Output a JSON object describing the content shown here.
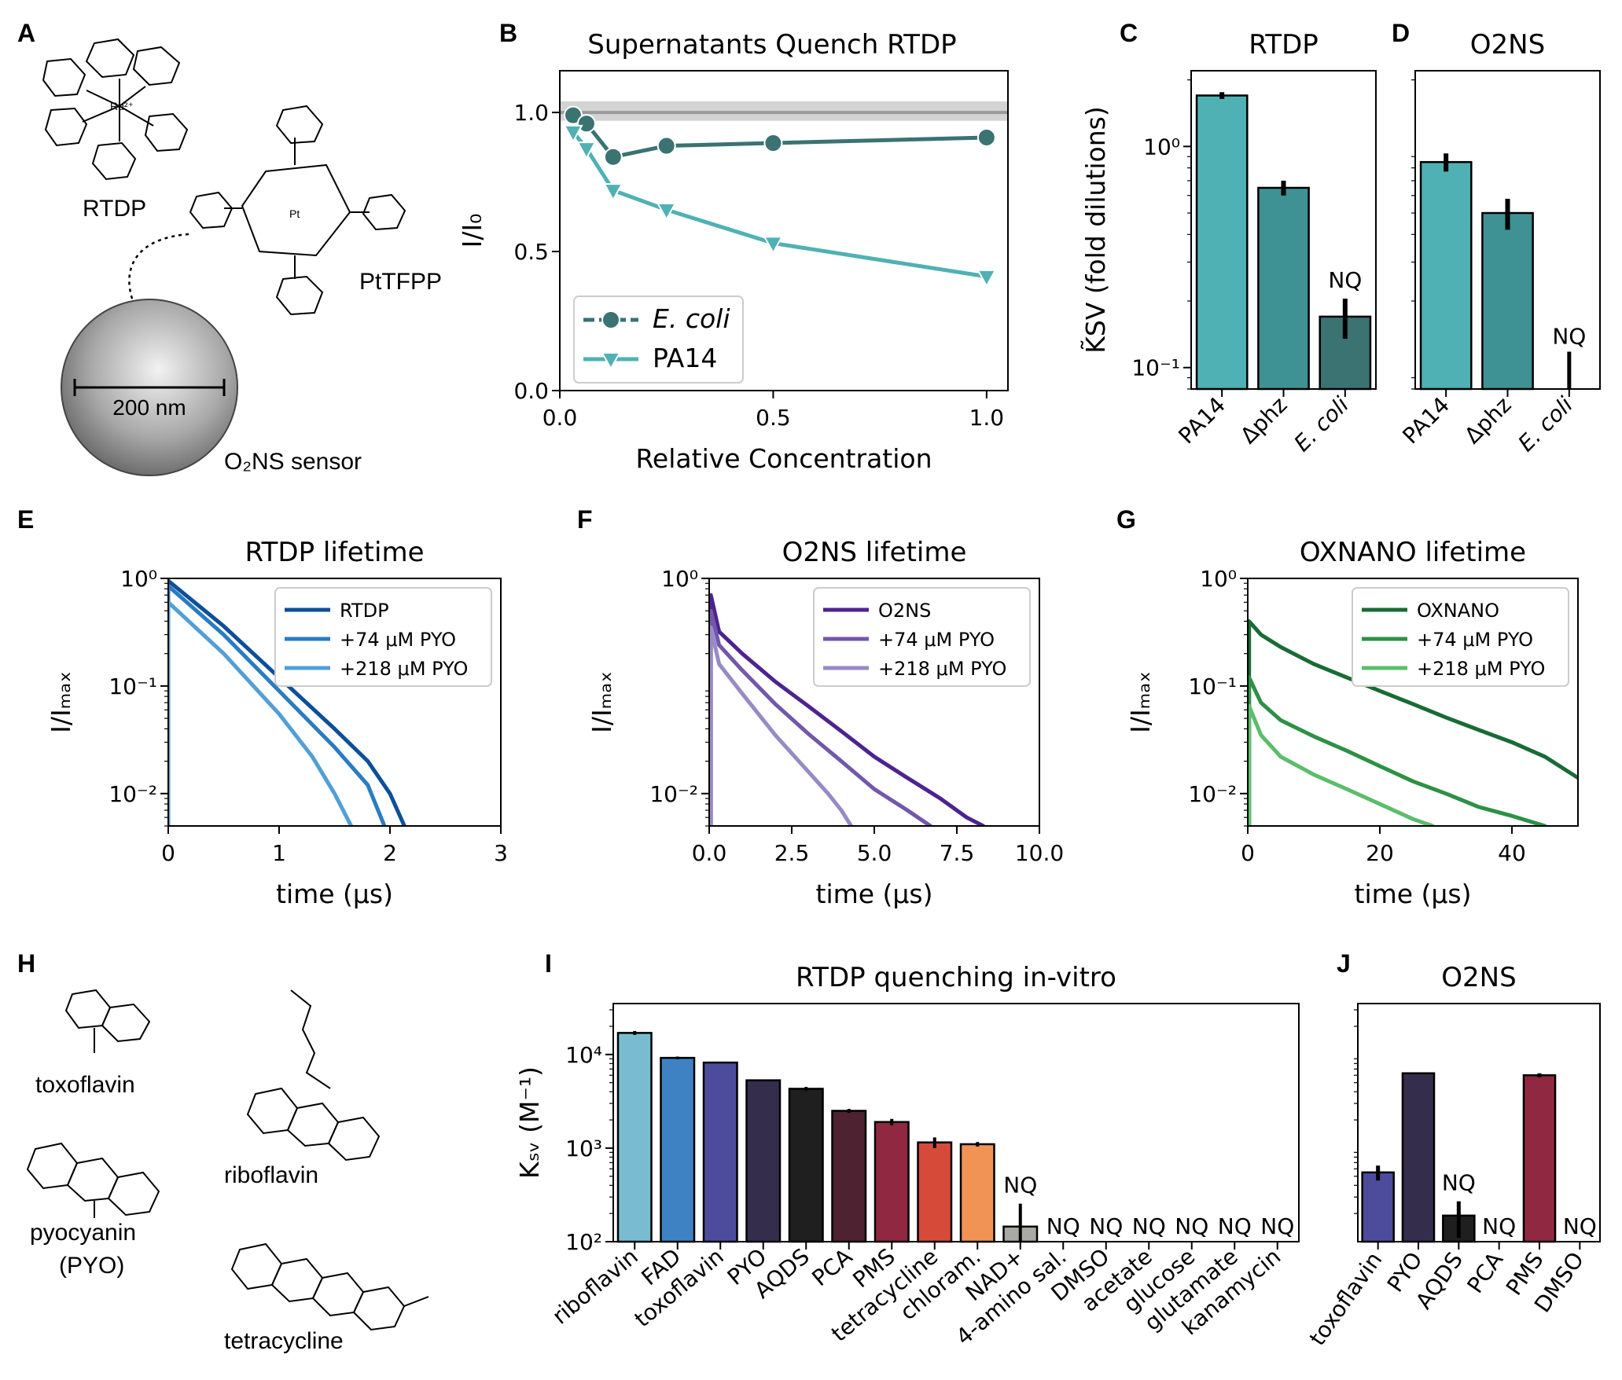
{
  "panels": {
    "A": {
      "letter": "A",
      "labels": [
        "RTDP",
        "PtTFPP",
        "200 nm",
        "O₂NS sensor"
      ]
    },
    "B": {
      "letter": "B"
    },
    "C": {
      "letter": "C"
    },
    "D": {
      "letter": "D"
    },
    "E": {
      "letter": "E"
    },
    "F": {
      "letter": "F"
    },
    "G": {
      "letter": "G"
    },
    "H": {
      "letter": "H",
      "labels": [
        "toxoflavin",
        "riboflavin",
        "pyocyanin",
        "(PYO)",
        "tetracycline"
      ]
    },
    "I": {
      "letter": "I"
    },
    "J": {
      "letter": "J"
    }
  },
  "colors": {
    "ecoli": "#3a7371",
    "pa14": "#4fb1b3",
    "dphz": "#3e9294",
    "rtdp_lines": [
      "#0d4f99",
      "#2a7cc2",
      "#519fd6"
    ],
    "o2ns_lines": [
      "#4d2390",
      "#7257ab",
      "#988ac6"
    ],
    "oxnano_lines": [
      "#196b35",
      "#2d9145",
      "#5bbd6b"
    ]
  },
  "chart_data": [
    {
      "id": "B",
      "type": "line",
      "title": "Supernatants Quench RTDP",
      "xlabel": "Relative Concentration",
      "ylabel": "I/I₀",
      "xlim": [
        0,
        1.05
      ],
      "ylim": [
        0,
        1.15
      ],
      "xticks": [
        0.0,
        0.5,
        1.0
      ],
      "xtick_labels": [
        "0.0",
        "0.5",
        "1.0"
      ],
      "yticks": [
        0.0,
        0.5,
        1.0
      ],
      "ytick_labels": [
        "0.0",
        "0.5",
        "1.0"
      ],
      "reference_band": [
        0.97,
        1.04
      ],
      "reference_line": 1.0,
      "legend": "lower-left",
      "series": [
        {
          "name": "E. coli",
          "marker": "circle",
          "x": [
            0.03125,
            0.0625,
            0.125,
            0.25,
            0.5,
            1.0
          ],
          "y": [
            0.99,
            0.96,
            0.84,
            0.88,
            0.89,
            0.91
          ]
        },
        {
          "name": "PA14",
          "marker": "triangle-down",
          "x": [
            0.03125,
            0.0625,
            0.125,
            0.25,
            0.5,
            1.0
          ],
          "y": [
            0.93,
            0.87,
            0.72,
            0.65,
            0.53,
            0.41
          ]
        }
      ]
    },
    {
      "id": "C",
      "type": "bar",
      "title": "RTDP",
      "scale": "log",
      "ylabel": "K̃SV (fold dilutions)",
      "ylim": [
        0.08,
        2.2
      ],
      "yticks": [
        0.1,
        1.0
      ],
      "ytick_labels": [
        "10⁻¹",
        "10⁰"
      ],
      "categories": [
        "PA14",
        "Δphz",
        "E. coli"
      ],
      "values": [
        1.7,
        0.65,
        0.17
      ],
      "errors": [
        0.06,
        0.05,
        0.035
      ],
      "annotations": [
        {
          "category": "E. coli",
          "text": "NQ"
        }
      ]
    },
    {
      "id": "D",
      "type": "bar",
      "title": "O2NS",
      "scale": "log",
      "ylim": [
        0.08,
        2.2
      ],
      "categories": [
        "PA14",
        "Δphz",
        "E. coli"
      ],
      "values": [
        0.85,
        0.5,
        null
      ],
      "errors": [
        0.08,
        0.08,
        null
      ],
      "annotations": [
        {
          "category": "E. coli",
          "text": "NQ"
        }
      ]
    },
    {
      "id": "E",
      "type": "line",
      "title": "RTDP lifetime",
      "scale": "log",
      "xlabel": "time (μs)",
      "ylabel": "I/Iₘₐₓ",
      "xlim": [
        0,
        3
      ],
      "ylim": [
        0.005,
        1.0
      ],
      "xticks": [
        0,
        1,
        2,
        3
      ],
      "xtick_labels": [
        "0",
        "1",
        "2",
        "3"
      ],
      "yticks": [
        0.01,
        0.1,
        1.0
      ],
      "ytick_labels": [
        "10⁻²",
        "10⁻¹",
        "10⁰"
      ],
      "legend": "upper-right",
      "series": [
        {
          "name": "RTDP",
          "x": [
            0,
            0.5,
            1.0,
            1.5,
            1.8,
            2.0,
            2.13
          ],
          "y": [
            0.95,
            0.36,
            0.12,
            0.04,
            0.02,
            0.01,
            0.005
          ]
        },
        {
          "name": "+74 μM PYO",
          "x": [
            0,
            0.5,
            1.0,
            1.5,
            1.8,
            1.95
          ],
          "y": [
            0.85,
            0.3,
            0.09,
            0.027,
            0.012,
            0.005
          ]
        },
        {
          "name": "+218 μM PYO",
          "x": [
            0,
            0.5,
            1.0,
            1.3,
            1.5,
            1.65
          ],
          "y": [
            0.6,
            0.2,
            0.055,
            0.022,
            0.01,
            0.005
          ]
        }
      ]
    },
    {
      "id": "F",
      "type": "line",
      "title": "O2NS lifetime",
      "scale": "log",
      "xlabel": "time (μs)",
      "ylabel": "I/Iₘₐₓ",
      "xlim": [
        0,
        10
      ],
      "ylim": [
        0.005,
        1.0
      ],
      "xticks": [
        0,
        2.5,
        5.0,
        7.5,
        10.0
      ],
      "xtick_labels": [
        "0.0",
        "2.5",
        "5.0",
        "7.5",
        "10.0"
      ],
      "yticks": [
        0.01,
        1.0
      ],
      "ytick_labels": [
        "10⁻²",
        "10⁰"
      ],
      "legend": "upper-right",
      "series": [
        {
          "name": "O2NS",
          "x": [
            0.05,
            0.3,
            1.0,
            2.0,
            3.0,
            4.0,
            5.0,
            6.0,
            7.0,
            7.8,
            8.3
          ],
          "y": [
            0.7,
            0.32,
            0.2,
            0.11,
            0.065,
            0.038,
            0.022,
            0.014,
            0.009,
            0.006,
            0.005
          ]
        },
        {
          "name": "+74 μM PYO",
          "x": [
            0.05,
            0.3,
            1.0,
            2.0,
            3.0,
            4.0,
            5.0,
            6.0,
            6.7
          ],
          "y": [
            0.5,
            0.24,
            0.14,
            0.068,
            0.036,
            0.02,
            0.011,
            0.007,
            0.005
          ]
        },
        {
          "name": "+218 μM PYO",
          "x": [
            0.05,
            0.3,
            1.0,
            2.0,
            3.0,
            3.6,
            4.0,
            4.3
          ],
          "y": [
            0.35,
            0.16,
            0.085,
            0.035,
            0.016,
            0.01,
            0.007,
            0.005
          ]
        }
      ]
    },
    {
      "id": "G",
      "type": "line",
      "title": "OXNANO lifetime",
      "scale": "log",
      "xlabel": "time (μs)",
      "ylabel": "I/Iₘₐₓ",
      "xlim": [
        0,
        50
      ],
      "ylim": [
        0.005,
        1.0
      ],
      "xticks": [
        0,
        20,
        40
      ],
      "xtick_labels": [
        "0",
        "20",
        "40"
      ],
      "yticks": [
        0.01,
        0.1,
        1.0
      ],
      "ytick_labels": [
        "10⁻²",
        "10⁻¹",
        "10⁰"
      ],
      "legend": "upper-right",
      "series": [
        {
          "name": "OXNANO",
          "x": [
            0.2,
            2,
            5,
            10,
            15,
            20,
            25,
            30,
            35,
            40,
            45,
            50
          ],
          "y": [
            0.4,
            0.3,
            0.23,
            0.16,
            0.12,
            0.09,
            0.068,
            0.051,
            0.039,
            0.03,
            0.022,
            0.014
          ]
        },
        {
          "name": "+74 μM PYO",
          "x": [
            0.2,
            2,
            5,
            10,
            15,
            20,
            25,
            30,
            35,
            40,
            45
          ],
          "y": [
            0.12,
            0.07,
            0.048,
            0.034,
            0.025,
            0.018,
            0.013,
            0.01,
            0.0075,
            0.0062,
            0.005
          ]
        },
        {
          "name": "+218 μM PYO",
          "x": [
            0.2,
            2,
            5,
            10,
            15,
            20,
            25,
            28
          ],
          "y": [
            0.065,
            0.035,
            0.022,
            0.015,
            0.011,
            0.008,
            0.0058,
            0.005
          ]
        }
      ]
    },
    {
      "id": "I",
      "type": "bar",
      "title": "RTDP quenching in-vitro",
      "scale": "log",
      "ylabel": "Kₛᵥ (M⁻¹)",
      "ylim": [
        100,
        35000
      ],
      "yticks": [
        100,
        1000,
        10000
      ],
      "ytick_labels": [
        "10²",
        "10³",
        "10⁴"
      ],
      "categories": [
        "riboflavin",
        "FAD",
        "toxoflavin",
        "PYO",
        "AQDS",
        "PCA",
        "PMS",
        "tetracycline",
        "chloram.",
        "NAD+",
        "4-amino sal.",
        "DMSO",
        "acetate",
        "glucose",
        "glutamate",
        "kanamycin"
      ],
      "values": [
        17000,
        9200,
        8200,
        5300,
        4300,
        2500,
        1900,
        1150,
        1100,
        145,
        null,
        null,
        null,
        null,
        null,
        null
      ],
      "errors": [
        800,
        300,
        150,
        100,
        200,
        120,
        150,
        150,
        60,
        110,
        null,
        null,
        null,
        null,
        null,
        null
      ],
      "colors": [
        "#79bcd2",
        "#3f82c3",
        "#4d4c9c",
        "#342d4c",
        "#1f1f1f",
        "#4e2230",
        "#8f2840",
        "#d64a3a",
        "#f09355",
        "#a9aaa6",
        null,
        null,
        null,
        null,
        null,
        null
      ],
      "annotations": [
        "",
        "",
        "",
        "",
        "",
        "",
        "",
        "",
        "",
        "NQ",
        "NQ",
        "NQ",
        "NQ",
        "NQ",
        "NQ",
        "NQ"
      ]
    },
    {
      "id": "J",
      "type": "bar",
      "title": "O2NS",
      "scale": "log",
      "ylim": [
        100,
        35000
      ],
      "categories": [
        "toxoflavin",
        "PYO",
        "AQDS",
        "PCA",
        "PMS",
        "DMSO"
      ],
      "values": [
        550,
        6300,
        190,
        null,
        6000,
        null
      ],
      "errors": [
        100,
        100,
        80,
        null,
        300,
        null
      ],
      "colors": [
        "#4d4c9c",
        "#342d4c",
        "#1f1f1f",
        null,
        "#8f2840",
        null
      ],
      "annotations": [
        "",
        "",
        "NQ",
        "NQ",
        "",
        "NQ"
      ]
    }
  ]
}
